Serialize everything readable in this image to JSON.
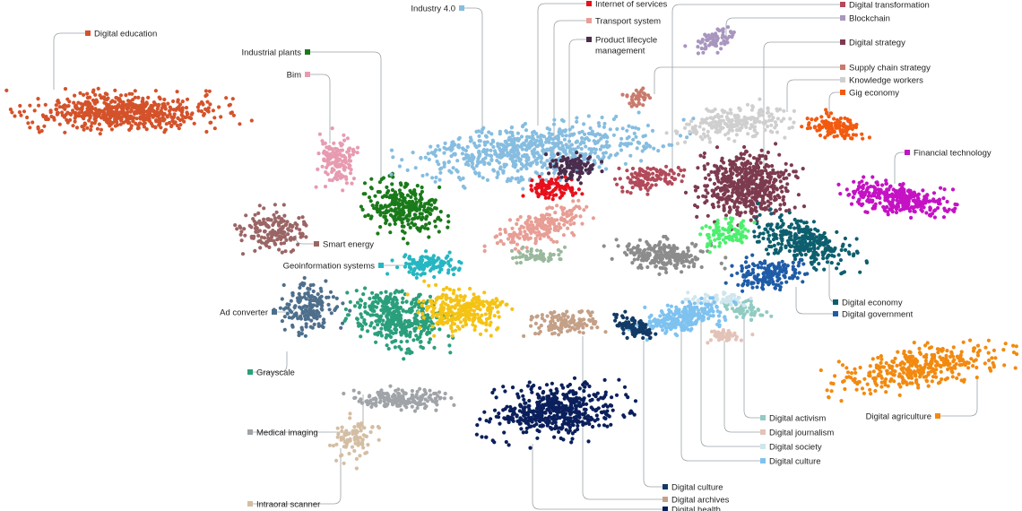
{
  "clusters": [
    {
      "name": "Digital education",
      "color": "#d4522a"
    },
    {
      "name": "Industrial plants",
      "color": "#1a7a1a"
    },
    {
      "name": "Bim",
      "color": "#e79bb1"
    },
    {
      "name": "Industry 4.0",
      "color": "#86bde0"
    },
    {
      "name": "Internet of services",
      "color": "#e8101c"
    },
    {
      "name": "Transport system",
      "color": "#e89e95"
    },
    {
      "name": "Product lifecycle management",
      "color": "#4a2d4d"
    },
    {
      "name": "Digital transformation",
      "color": "#b24a5a"
    },
    {
      "name": "Blockchain",
      "color": "#a896bf"
    },
    {
      "name": "Digital strategy",
      "color": "#7d3b4f"
    },
    {
      "name": "Supply chain strategy",
      "color": "#c97a6d"
    },
    {
      "name": "Knowledge workers",
      "color": "#cfcfcf"
    },
    {
      "name": "Gig economy",
      "color": "#f25a10"
    },
    {
      "name": "Financial technology",
      "color": "#c412c4"
    },
    {
      "name": "Smart energy",
      "color": "#9b6565"
    },
    {
      "name": "Geoinformation systems",
      "color": "#25b7c2"
    },
    {
      "name": "Ad converter",
      "color": "#4e6f8c"
    },
    {
      "name": "Grayscale",
      "color": "#2a9f7b"
    },
    {
      "name": "Medical imaging",
      "color": "#a0a4a8"
    },
    {
      "name": "Intraoral scanner",
      "color": "#d4bea3"
    },
    {
      "name": "Digital economy",
      "color": "#0d5f6e"
    },
    {
      "name": "Digital government",
      "color": "#1f5ca7"
    },
    {
      "name": "Digital agriculture",
      "color": "#f28a10"
    },
    {
      "name": "Digital activism",
      "color": "#91cbc2"
    },
    {
      "name": "Digital journalism",
      "color": "#e3c3b8"
    },
    {
      "name": "Digital society",
      "color": "#cfe6ee"
    },
    {
      "name": "Digital culture",
      "color": "#7ec2f0"
    },
    {
      "name": "Digital culture",
      "color": "#123a66"
    },
    {
      "name": "Digital archives",
      "color": "#c4a087"
    },
    {
      "name": "Digital health",
      "color": "#0a1f5c"
    },
    {
      "name": "",
      "color": "#f5c314"
    },
    {
      "name": "",
      "color": "#8c8c8c"
    },
    {
      "name": "",
      "color": "#4cf06e"
    },
    {
      "name": "",
      "color": "#9ab99c"
    }
  ]
}
